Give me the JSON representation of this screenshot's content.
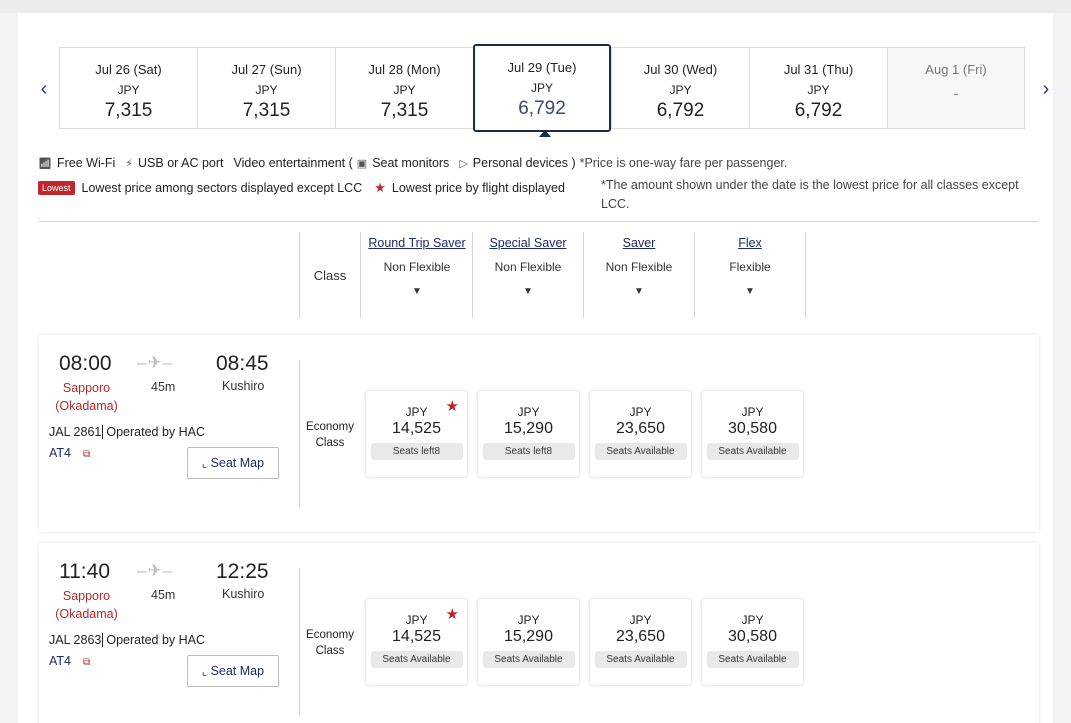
{
  "nav": {
    "prev": "‹",
    "next": "›"
  },
  "dates": [
    {
      "date": "Jul 26 (Sat)",
      "currency": "JPY",
      "price": "7,315"
    },
    {
      "date": "Jul 27 (Sun)",
      "currency": "JPY",
      "price": "7,315"
    },
    {
      "date": "Jul 28 (Mon)",
      "currency": "JPY",
      "price": "7,315"
    },
    {
      "date": "Jul 29 (Tue)",
      "currency": "JPY",
      "price": "6,792"
    },
    {
      "date": "Jul 30 (Wed)",
      "currency": "JPY",
      "price": "6,792"
    },
    {
      "date": "Jul 31 (Thu)",
      "currency": "JPY",
      "price": "6,792"
    },
    {
      "date": "Aug 1 (Fri)",
      "currency": "",
      "price": "-"
    }
  ],
  "legend": {
    "wifi": "Free Wi-Fi",
    "usb": "USB or AC port",
    "video": "Video entertainment (",
    "seat_monitors": "Seat monitors",
    "personal_devices": "Personal devices )",
    "price_note": "*Price is one-way fare per passenger.",
    "lowest_badge": "Lowest",
    "lowest_sectors": "Lowest price among sectors displayed except LCC",
    "lowest_flight": "Lowest price by flight displayed",
    "amount_note": "*The amount shown under the date is the lowest price for all classes except LCC."
  },
  "fare_header": {
    "class_label": "Class",
    "fares": [
      {
        "name": "Round Trip Saver",
        "flex": "Non Flexible"
      },
      {
        "name": "Special Saver",
        "flex": "Non Flexible"
      },
      {
        "name": "Saver",
        "flex": "Non Flexible"
      },
      {
        "name": "Flex",
        "flex": "Flexible"
      }
    ]
  },
  "flights": [
    {
      "dep_time": "08:00",
      "arr_time": "08:45",
      "dep_city_1": "Sapporo",
      "dep_city_2": "(Okadama)",
      "arr_city": "Kushiro",
      "duration": "45m",
      "flight_no": "JAL 2861",
      "operated": "Operated by HAC",
      "aircraft": "AT4",
      "seat_map": "Seat Map",
      "class_1": "Economy",
      "class_2": "Class",
      "fares": [
        {
          "currency": "JPY",
          "price": "14,525",
          "seats": "Seats left8"
        },
        {
          "currency": "JPY",
          "price": "15,290",
          "seats": "Seats left8"
        },
        {
          "currency": "JPY",
          "price": "23,650",
          "seats": "Seats Available"
        },
        {
          "currency": "JPY",
          "price": "30,580",
          "seats": "Seats Available"
        }
      ]
    },
    {
      "dep_time": "11:40",
      "arr_time": "12:25",
      "dep_city_1": "Sapporo",
      "dep_city_2": "(Okadama)",
      "arr_city": "Kushiro",
      "duration": "45m",
      "flight_no": "JAL 2863",
      "operated": "Operated by HAC",
      "aircraft": "AT4",
      "seat_map": "Seat Map",
      "class_1": "Economy",
      "class_2": "Class",
      "fares": [
        {
          "currency": "JPY",
          "price": "14,525",
          "seats": "Seats Available"
        },
        {
          "currency": "JPY",
          "price": "15,290",
          "seats": "Seats Available"
        },
        {
          "currency": "JPY",
          "price": "23,650",
          "seats": "Seats Available"
        },
        {
          "currency": "JPY",
          "price": "30,580",
          "seats": "Seats Available"
        }
      ]
    }
  ],
  "colors": {
    "accent": "#1c2b4d",
    "lowest": "#c0272d",
    "link": "#1c2b6b"
  }
}
